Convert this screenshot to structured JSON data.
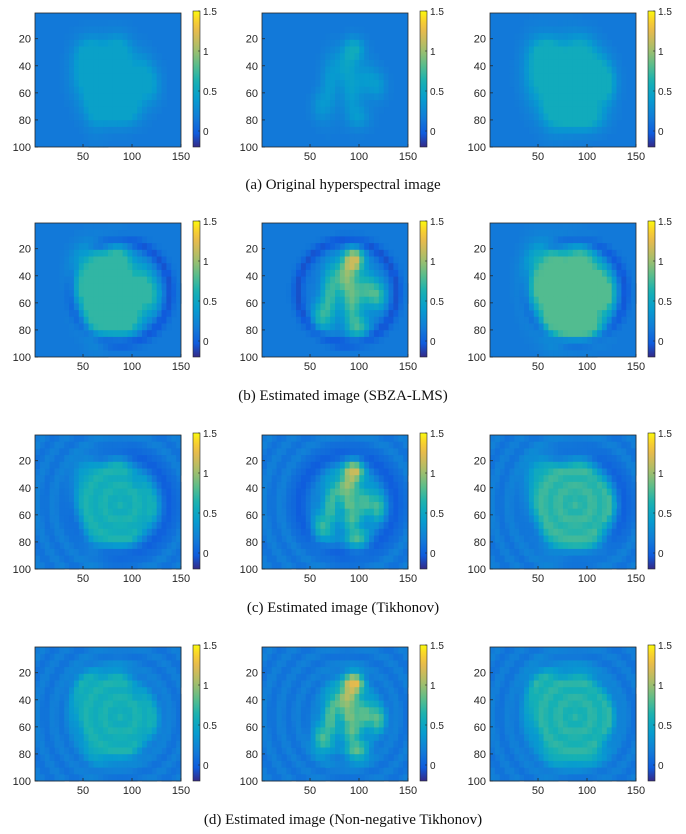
{
  "chart_data": {
    "type": "heatmap",
    "colormap": "parula",
    "colorbar": {
      "range": [
        -0.2,
        1.5
      ],
      "ticks": [
        "0",
        "0.5",
        "1",
        "1.5"
      ]
    },
    "x_axis": {
      "range": [
        1,
        150
      ],
      "ticks": [
        "50",
        "100",
        "150"
      ]
    },
    "y_axis": {
      "range": [
        1,
        100
      ],
      "reversed": true,
      "ticks": [
        "20",
        "40",
        "60",
        "80",
        "100"
      ]
    },
    "background_value": 0.15,
    "panels_per_row": 3,
    "rows": [
      {
        "caption": "(a)  Original hyperspectral image",
        "peak_values": [
          0.45,
          0.55,
          0.55
        ],
        "ringing": false,
        "dark_edge": false
      },
      {
        "caption": "(b)  Estimated image (SBZA-LMS)",
        "peak_values": [
          0.7,
          1.15,
          0.8
        ],
        "ringing": false,
        "dark_edge": true
      },
      {
        "caption": "(c)  Estimated image (Tikhonov)",
        "peak_values": [
          0.6,
          1.1,
          0.7
        ],
        "ringing": true,
        "dark_edge": true
      },
      {
        "caption": "(d)  Estimated image (Non-negative Tikhonov)",
        "peak_values": [
          0.6,
          1.2,
          0.65
        ],
        "ringing": true,
        "dark_edge": false
      }
    ]
  }
}
